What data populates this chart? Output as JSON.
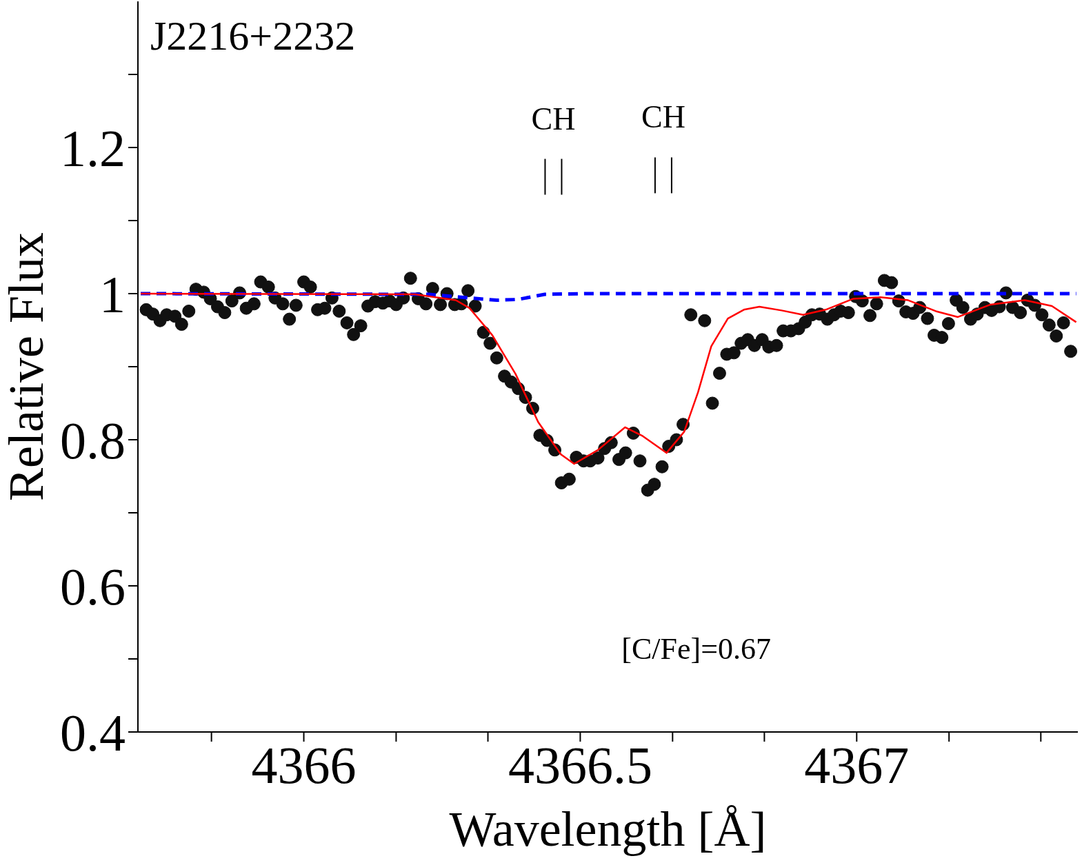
{
  "chart_data": {
    "type": "scatter",
    "title": "J2216+2232",
    "xlabel": "Wavelength [Å]",
    "ylabel": "Relative Flux",
    "xlim": [
      4365.7,
      4367.4
    ],
    "ylim": [
      0.4,
      1.4
    ],
    "xticks": [
      {
        "value": 4365.833,
        "label": null
      },
      4366,
      {
        "value": 4366.167,
        "label": null
      },
      {
        "value": 4366.333,
        "label": null
      },
      4366.5,
      {
        "value": 4366.667,
        "label": null
      },
      {
        "value": 4366.833,
        "label": null
      },
      4367,
      {
        "value": 4367.167,
        "label": null
      },
      {
        "value": 4367.333,
        "label": null
      }
    ],
    "yticks": [
      0.4,
      {
        "value": 0.5,
        "label": null
      },
      0.6,
      {
        "value": 0.7,
        "label": null
      },
      0.8,
      {
        "value": 0.9,
        "label": null
      },
      1,
      {
        "value": 1.1,
        "label": null
      },
      1.2,
      {
        "value": 1.3,
        "label": null
      }
    ],
    "grid": false,
    "legend": false,
    "annotations": [
      "CH",
      "CH",
      "[C/Fe]=0.67"
    ],
    "series": [
      {
        "marker": "circle",
        "color": "#111111",
        "x": [
          4365.715,
          4365.727,
          4365.74,
          4365.752,
          4365.767,
          4365.779,
          4365.792,
          4365.805,
          4365.819,
          4365.831,
          4365.844,
          4365.857,
          4365.87,
          4365.884,
          4365.896,
          4365.91,
          4365.922,
          4365.936,
          4365.948,
          4365.962,
          4365.974,
          4365.986,
          4366.0,
          4366.012,
          4366.025,
          4366.038,
          4366.051,
          4366.064,
          4366.078,
          4366.09,
          4366.103,
          4366.116,
          4366.129,
          4366.143,
          4366.155,
          4366.167,
          4366.18,
          4366.193,
          4366.207,
          4366.221,
          4366.233,
          4366.247,
          4366.259,
          4366.273,
          4366.285,
          4366.297,
          4366.31,
          4366.325,
          4366.337,
          4366.349,
          4366.363,
          4366.375,
          4366.388,
          4366.401,
          4366.414,
          4366.427,
          4366.44,
          4366.454,
          4366.466,
          4366.48,
          4366.493,
          4366.506,
          4366.518,
          4366.532,
          4366.544,
          4366.556,
          4366.57,
          4366.582,
          4366.596,
          4366.608,
          4366.622,
          4366.634,
          4366.648,
          4366.66,
          4366.674,
          4366.686,
          4366.7,
          4366.725,
          4366.739,
          4366.752,
          4366.765,
          4366.778,
          4366.791,
          4366.803,
          4366.815,
          4366.829,
          4366.841,
          4366.855,
          4366.867,
          4366.881,
          4366.895,
          4366.907,
          4366.919,
          4366.933,
          4366.947,
          4366.959,
          4366.971,
          4366.985,
          4366.998,
          4367.01,
          4367.024,
          4367.036,
          4367.05,
          4367.063,
          4367.076,
          4367.089,
          4367.102,
          4367.114,
          4367.128,
          4367.14,
          4367.154,
          4367.166,
          4367.18,
          4367.192,
          4367.206,
          4367.218,
          4367.232,
          4367.244,
          4367.258,
          4367.27,
          4367.282,
          4367.296,
          4367.309,
          4367.322,
          4367.335,
          4367.348,
          4367.361,
          4367.374,
          4367.387
        ],
        "values": [
          0.978,
          0.972,
          0.963,
          0.971,
          0.969,
          0.958,
          0.976,
          1.006,
          1.002,
          0.993,
          0.982,
          0.974,
          0.99,
          1.001,
          0.98,
          0.986,
          1.016,
          1.009,
          0.994,
          0.986,
          0.965,
          0.984,
          1.016,
          1.009,
          0.978,
          0.98,
          0.994,
          0.976,
          0.96,
          0.944,
          0.956,
          0.983,
          0.989,
          0.987,
          0.99,
          0.985,
          0.994,
          1.021,
          0.993,
          0.986,
          1.007,
          0.985,
          1.0,
          0.985,
          0.986,
          1.004,
          0.983,
          0.947,
          0.932,
          0.912,
          0.887,
          0.879,
          0.87,
          0.858,
          0.843,
          0.806,
          0.799,
          0.786,
          0.741,
          0.746,
          0.776,
          0.771,
          0.771,
          0.775,
          0.788,
          0.796,
          0.773,
          0.782,
          0.809,
          0.771,
          0.731,
          0.739,
          0.763,
          0.791,
          0.8,
          0.821,
          0.971,
          0.963,
          0.85,
          0.891,
          0.917,
          0.919,
          0.932,
          0.937,
          0.929,
          0.937,
          0.927,
          0.929,
          0.949,
          0.949,
          0.952,
          0.961,
          0.971,
          0.972,
          0.965,
          0.971,
          0.976,
          0.974,
          0.996,
          0.99,
          0.97,
          0.986,
          1.018,
          1.015,
          0.99,
          0.975,
          0.973,
          0.981,
          0.966,
          0.943,
          0.94,
          0.959,
          0.991,
          0.981,
          0.965,
          0.972,
          0.981,
          0.977,
          0.982,
          1.001,
          0.981,
          0.974,
          0.991,
          0.984,
          0.971,
          0.957,
          0.942,
          0.96,
          0.921
        ]
      },
      {
        "type": "line",
        "line_style": "solid",
        "color": "#ff0000",
        "x": [
          4365.705,
          4366.201,
          4366.275,
          4366.3,
          4366.341,
          4366.383,
          4366.424,
          4366.465,
          4366.489,
          4366.532,
          4366.581,
          4366.613,
          4366.656,
          4366.688,
          4366.713,
          4366.737,
          4366.767,
          4366.796,
          4366.824,
          4366.864,
          4366.903,
          4366.944,
          4366.994,
          4367.043,
          4367.093,
          4367.143,
          4367.183,
          4367.242,
          4367.304,
          4367.353,
          4367.397
        ],
        "values": [
          1.0,
          0.999,
          0.991,
          0.98,
          0.943,
          0.89,
          0.824,
          0.78,
          0.767,
          0.786,
          0.817,
          0.805,
          0.782,
          0.811,
          0.865,
          0.928,
          0.966,
          0.978,
          0.982,
          0.977,
          0.971,
          0.978,
          0.993,
          0.995,
          0.991,
          0.976,
          0.968,
          0.985,
          0.991,
          0.983,
          0.961
        ]
      },
      {
        "type": "line",
        "line_style": "dashed",
        "color": "#0000ff",
        "x": [
          4365.705,
          4366.226,
          4366.3,
          4366.349,
          4366.387,
          4366.436,
          4366.511,
          4367.397
        ],
        "values": [
          1.0,
          0.999,
          0.994,
          0.991,
          0.992,
          0.999,
          1.0,
          1.0
        ]
      }
    ]
  }
}
